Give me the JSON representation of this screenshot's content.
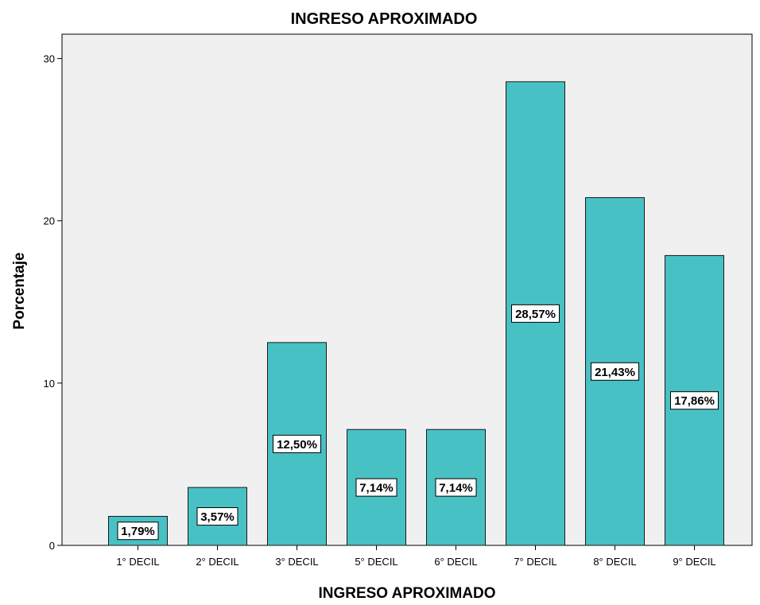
{
  "chart_data": {
    "type": "bar",
    "title": "INGRESO APROXIMADO",
    "xlabel": "INGRESO APROXIMADO",
    "ylabel": "Porcentaje",
    "categories": [
      "1° DECIL",
      "2° DECIL",
      "3° DECIL",
      "5° DECIL",
      "6° DECIL",
      "7° DECIL",
      "8° DECIL",
      "9° DECIL"
    ],
    "values": [
      1.79,
      3.57,
      12.5,
      7.14,
      7.14,
      28.57,
      21.43,
      17.86
    ],
    "data_labels": [
      "1,79%",
      "3,57%",
      "12,50%",
      "7,14%",
      "7,14%",
      "28,57%",
      "21,43%",
      "17,86%"
    ],
    "ylim": [
      0,
      31.5
    ],
    "yticks": [
      0,
      10,
      20,
      30
    ],
    "grid": false,
    "legend": "none"
  },
  "colors": {
    "bar_fill": "#48c1c4",
    "bar_stroke": "#1a1a1a",
    "plot_background": "#f0f0f0"
  }
}
